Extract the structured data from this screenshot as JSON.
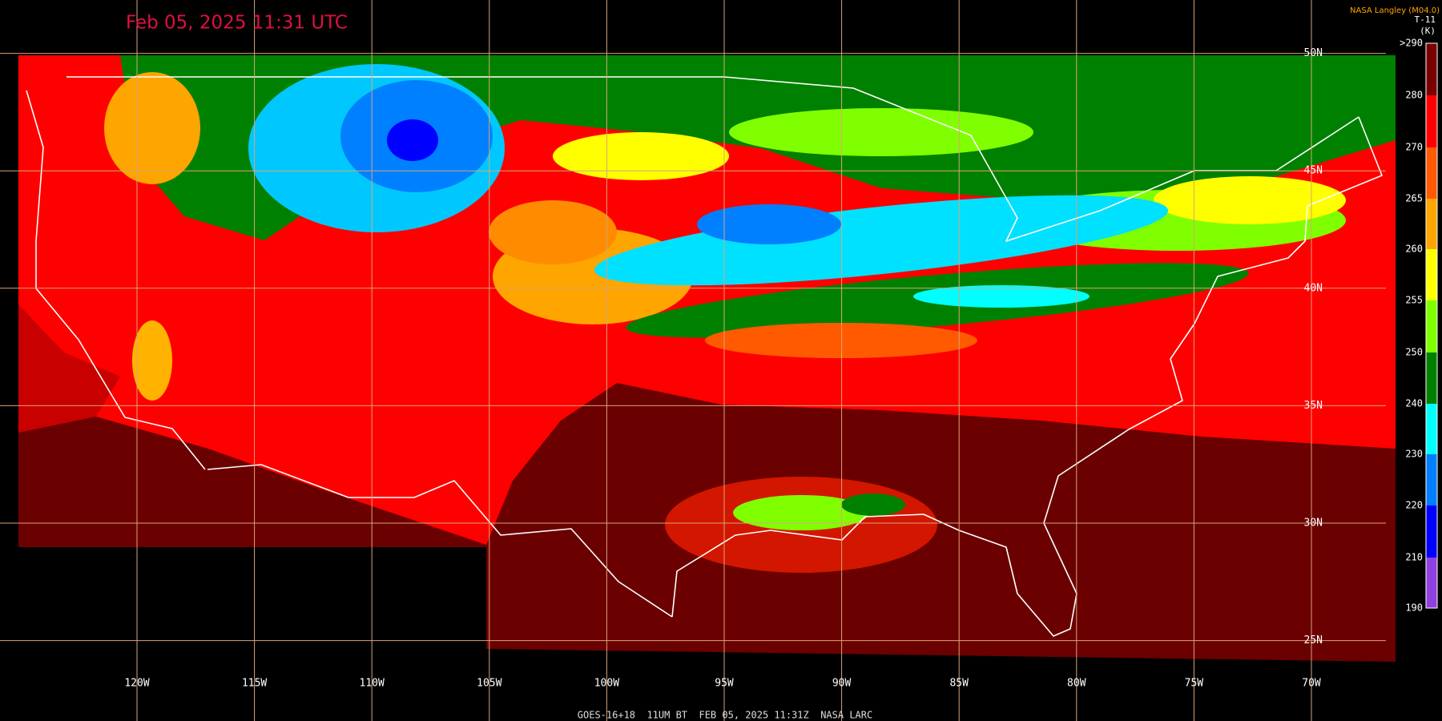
{
  "header": {
    "timestamp": "Feb 05, 2025 11:31 UTC",
    "credit": "NASA Langley (M04.0)"
  },
  "colorbar": {
    "title": "T-11",
    "unit": "(K)",
    "labels": [
      ">290",
      "280",
      "270",
      "265",
      "260",
      "255",
      "250",
      "240",
      "230",
      "220",
      "210",
      "190"
    ],
    "colors": [
      "#7a0000",
      "#ff0000",
      "#ff5a00",
      "#ffa500",
      "#ffff00",
      "#80ff00",
      "#008000",
      "#00ffff",
      "#0080ff",
      "#0000ff",
      "#9040e0"
    ]
  },
  "grid": {
    "longitudes": [
      "120W",
      "115W",
      "110W",
      "105W",
      "100W",
      "95W",
      "90W",
      "85W",
      "80W",
      "75W",
      "70W"
    ],
    "latitudes": [
      "50N",
      "45N",
      "40N",
      "35N",
      "30N",
      "25N"
    ]
  },
  "footer": "GOES-16+18  11UM BT  FEB 05, 2025 11:31Z  NASA LARC"
}
